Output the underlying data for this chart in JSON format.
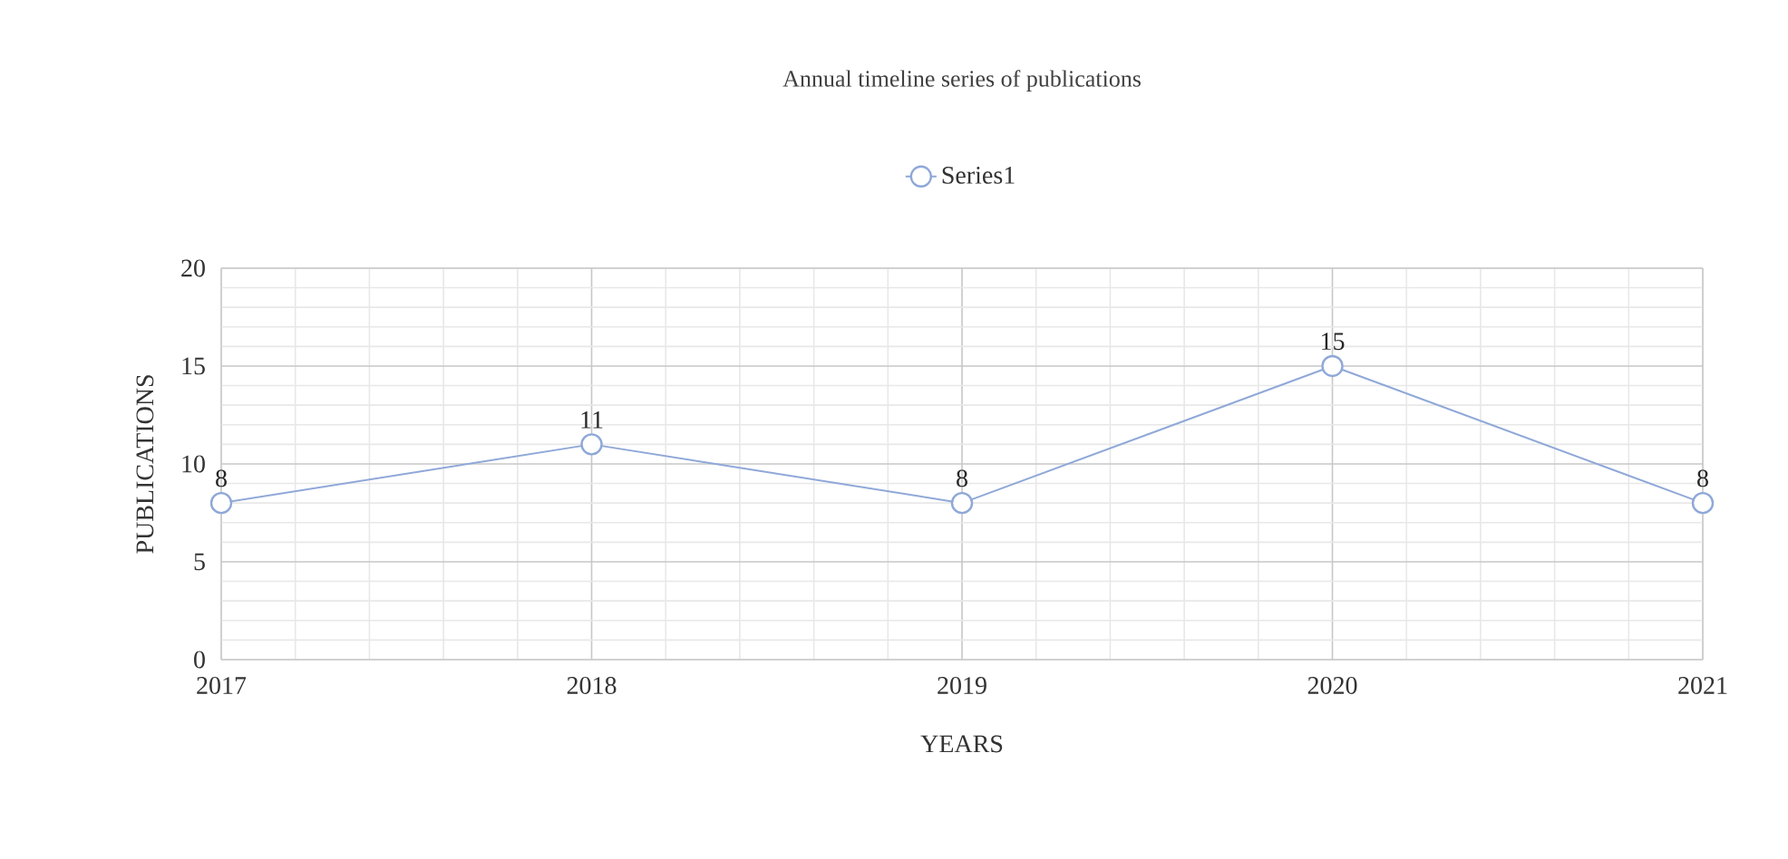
{
  "chart_data": {
    "type": "line",
    "title": "Annual timeline series of publications",
    "xlabel": "YEARS",
    "ylabel": "PUBLICATIONS",
    "categories": [
      "2017",
      "2018",
      "2019",
      "2020",
      "2021"
    ],
    "series": [
      {
        "name": "Series1",
        "color": "#8fa8d8",
        "values": [
          8,
          11,
          8,
          15,
          8
        ]
      }
    ],
    "ylim": [
      0,
      20
    ],
    "yticks": [
      0,
      5,
      10,
      15,
      20
    ],
    "grid": true,
    "legend": "top",
    "marker": "circle",
    "line_style": "solid",
    "data_labels": true
  }
}
